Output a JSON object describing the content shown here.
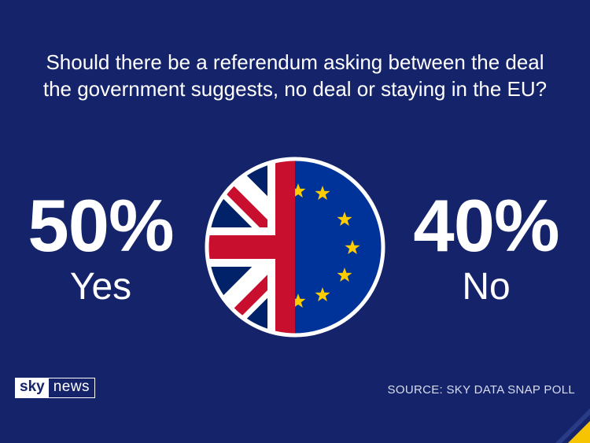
{
  "question": {
    "line1": "Should there be a referendum asking between the deal",
    "line2": "the government suggests, no deal or staying in the EU?"
  },
  "results": {
    "yes": {
      "percent": "50%",
      "label": "Yes"
    },
    "no": {
      "percent": "40%",
      "label": "No"
    }
  },
  "flag": {
    "left_half": "Union Jack",
    "right_half": "EU flag",
    "icon": "uk-eu-flag-icon"
  },
  "branding": {
    "logo_sky": "sky",
    "logo_news": "news"
  },
  "source": "SOURCE: SKY DATA SNAP POLL",
  "colors": {
    "background": "#15246a",
    "eu_blue": "#003399",
    "eu_star": "#ffcc00",
    "uk_red": "#c8102e",
    "uk_blue": "#012169",
    "accent_yellow": "#f6c400"
  }
}
